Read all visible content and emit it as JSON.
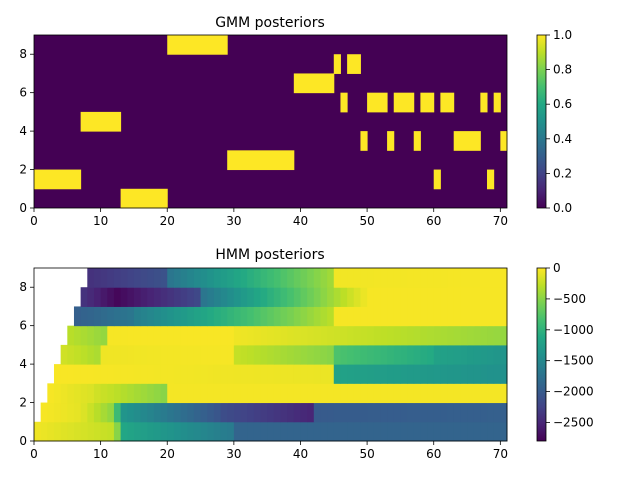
{
  "chart_data": [
    {
      "type": "heatmap",
      "title": "GMM posteriors",
      "xlim": [
        0,
        71
      ],
      "ylim": [
        0,
        9
      ],
      "xticks": [
        "0",
        "10",
        "20",
        "30",
        "40",
        "50",
        "60",
        "70"
      ],
      "yticks": [
        "0",
        "2",
        "4",
        "6",
        "8"
      ],
      "colorbar": {
        "range": [
          0.0,
          1.0
        ],
        "ticks": [
          "0.0",
          "0.2",
          "0.4",
          "0.6",
          "0.8",
          "1.0"
        ]
      },
      "background_value": 0.0,
      "active_value": 1.0,
      "active_states": [
        {
          "state": 0,
          "frames": [
            [
              13,
              20
            ]
          ]
        },
        {
          "state": 1,
          "frames": [
            [
              0,
              7
            ],
            [
              60,
              61
            ],
            [
              68,
              69
            ]
          ]
        },
        {
          "state": 2,
          "frames": [
            [
              29,
              39
            ]
          ]
        },
        {
          "state": 3,
          "frames": [
            [
              49,
              50
            ],
            [
              53,
              54
            ],
            [
              57,
              58
            ],
            [
              63,
              67
            ],
            [
              70,
              71
            ]
          ]
        },
        {
          "state": 4,
          "frames": [
            [
              7,
              13
            ]
          ]
        },
        {
          "state": 5,
          "frames": [
            [
              46,
              47
            ],
            [
              50,
              53
            ],
            [
              54,
              57
            ],
            [
              58,
              60
            ],
            [
              61,
              63
            ],
            [
              67,
              68
            ],
            [
              69,
              70
            ]
          ]
        },
        {
          "state": 6,
          "frames": [
            [
              39,
              45
            ]
          ]
        },
        {
          "state": 7,
          "frames": [
            [
              45,
              46
            ],
            [
              47,
              49
            ]
          ]
        },
        {
          "state": 8,
          "frames": [
            [
              20,
              29
            ]
          ]
        }
      ]
    },
    {
      "type": "heatmap",
      "title": "HMM posteriors",
      "xlim": [
        0,
        71
      ],
      "ylim": [
        0,
        9
      ],
      "xticks": [
        "0",
        "10",
        "20",
        "30",
        "40",
        "50",
        "60",
        "70"
      ],
      "yticks": [
        "0",
        "2",
        "4",
        "6",
        "8"
      ],
      "colorbar": {
        "range": [
          -2800,
          0
        ],
        "ticks": [
          "0",
          "−500",
          "−1000",
          "−1500",
          "−2000",
          "−2500"
        ]
      },
      "missing_frames_per_state": [
        0,
        1,
        2,
        3,
        4,
        5,
        6,
        7,
        8
      ],
      "rows": [
        {
          "state": 0,
          "segments": [
            {
              "x": [
                0,
                12
              ],
              "v": [
                -60,
                -250
              ]
            },
            {
              "x": [
                12,
                13
              ],
              "v": [
                -500,
                -500
              ]
            },
            {
              "x": [
                13,
                30
              ],
              "v": [
                -1150,
                -1650
              ]
            },
            {
              "x": [
                30,
                71
              ],
              "v": [
                -1900,
                -1900
              ]
            }
          ]
        },
        {
          "state": 1,
          "segments": [
            {
              "x": [
                1,
                7
              ],
              "v": [
                -30,
                -100
              ]
            },
            {
              "x": [
                7,
                12
              ],
              "v": [
                -150,
                -450
              ]
            },
            {
              "x": [
                12,
                13
              ],
              "v": [
                -900,
                -900
              ]
            },
            {
              "x": [
                13,
                28
              ],
              "v": [
                -1350,
                -2050
              ]
            },
            {
              "x": [
                28,
                42
              ],
              "v": [
                -2150,
                -2500
              ]
            },
            {
              "x": [
                42,
                71
              ],
              "v": [
                -2000,
                -1950
              ]
            }
          ]
        },
        {
          "state": 2,
          "segments": [
            {
              "x": [
                2,
                9
              ],
              "v": [
                -30,
                -150
              ]
            },
            {
              "x": [
                9,
                20
              ],
              "v": [
                -200,
                -500
              ]
            },
            {
              "x": [
                20,
                71
              ],
              "v": [
                -40,
                -40
              ]
            }
          ]
        },
        {
          "state": 3,
          "segments": [
            {
              "x": [
                3,
                45
              ],
              "v": [
                -20,
                -80
              ]
            },
            {
              "x": [
                45,
                71
              ],
              "v": [
                -1200,
                -1400
              ]
            }
          ]
        },
        {
          "state": 4,
          "segments": [
            {
              "x": [
                4,
                10
              ],
              "v": [
                -200,
                -350
              ]
            },
            {
              "x": [
                10,
                30
              ],
              "v": [
                -60,
                -30
              ]
            },
            {
              "x": [
                30,
                45
              ],
              "v": [
                -250,
                -500
              ]
            },
            {
              "x": [
                45,
                60
              ],
              "v": [
                -800,
                -1100
              ]
            },
            {
              "x": [
                60,
                71
              ],
              "v": [
                -1200,
                -1350
              ]
            }
          ]
        },
        {
          "state": 5,
          "segments": [
            {
              "x": [
                5,
                11
              ],
              "v": [
                -300,
                -450
              ]
            },
            {
              "x": [
                11,
                30
              ],
              "v": [
                -30,
                -20
              ]
            },
            {
              "x": [
                30,
                71
              ],
              "v": [
                -60,
                -450
              ]
            }
          ]
        },
        {
          "state": 6,
          "segments": [
            {
              "x": [
                6,
                15
              ],
              "v": [
                -1950,
                -1700
              ]
            },
            {
              "x": [
                15,
                45
              ],
              "v": [
                -1600,
                -300
              ]
            },
            {
              "x": [
                45,
                71
              ],
              "v": [
                -30,
                -30
              ]
            }
          ]
        },
        {
          "state": 7,
          "segments": [
            {
              "x": [
                7,
                13
              ],
              "v": [
                -2400,
                -2750
              ]
            },
            {
              "x": [
                13,
                25
              ],
              "v": [
                -2700,
                -2200
              ]
            },
            {
              "x": [
                25,
                50
              ],
              "v": [
                -1700,
                -80
              ]
            },
            {
              "x": [
                50,
                71
              ],
              "v": [
                -30,
                -30
              ]
            }
          ]
        },
        {
          "state": 8,
          "segments": [
            {
              "x": [
                8,
                20
              ],
              "v": [
                -2400,
                -2100
              ]
            },
            {
              "x": [
                20,
                45
              ],
              "v": [
                -1700,
                -400
              ]
            },
            {
              "x": [
                45,
                71
              ],
              "v": [
                -50,
                -30
              ]
            }
          ]
        }
      ]
    }
  ]
}
